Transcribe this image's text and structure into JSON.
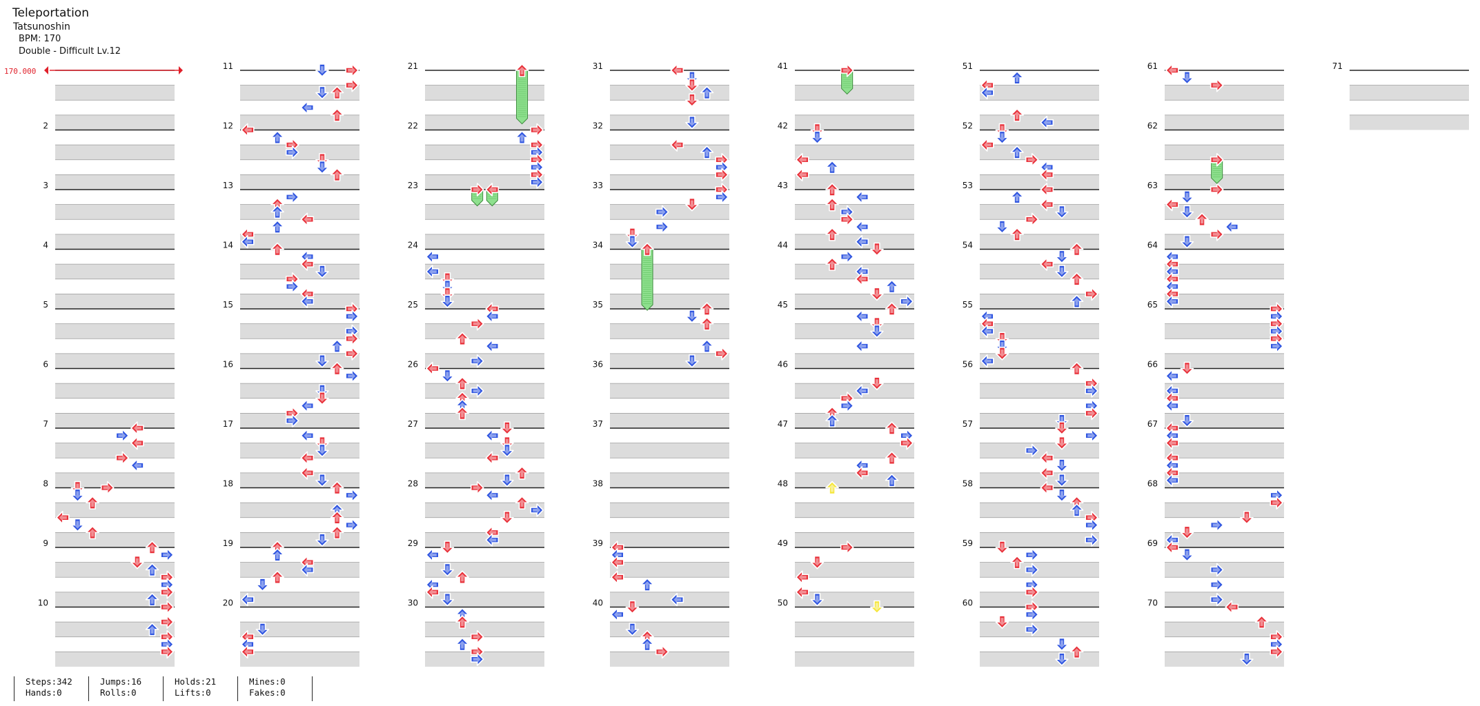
{
  "song": {
    "title": "Teleportation",
    "artist": "Tatsunoshin",
    "bpm_text": "BPM: 170",
    "difficulty": "Double - Difficult Lv.12"
  },
  "bpm_marker": "170.000",
  "measure_start": 1,
  "measure_count": 71,
  "measure_labels": [
    "2",
    "3",
    "4",
    "5",
    "6",
    "7",
    "8",
    "9",
    "10",
    "11",
    "12",
    "13",
    "14",
    "15",
    "16",
    "17",
    "18",
    "19",
    "20",
    "21",
    "22",
    "23",
    "24",
    "25",
    "26",
    "27",
    "28",
    "29",
    "30",
    "31",
    "32",
    "33",
    "34",
    "35",
    "36",
    "37",
    "38",
    "39",
    "40",
    "41",
    "42",
    "43",
    "44",
    "45",
    "46",
    "47",
    "48",
    "49",
    "50",
    "51",
    "52",
    "53",
    "54",
    "55",
    "56",
    "57",
    "58",
    "59",
    "60",
    "61",
    "62",
    "63",
    "64",
    "65",
    "66",
    "67",
    "68",
    "69",
    "70",
    "71"
  ],
  "colors": {
    "quarter_arrow": "#e8313a",
    "eighth_arrow": "#2f55e0",
    "sixteenth_arrow": "#f5e63a",
    "hold_body": "#8ee08e",
    "band": "#dcdcdc",
    "bpm_line": "#e0202a"
  },
  "notes_sample": [
    {
      "measure": 7,
      "lane": 5,
      "beat": 0,
      "color": "red",
      "dir": "left"
    },
    {
      "measure": 7,
      "lane": 4,
      "beat": 0.5,
      "color": "blue",
      "dir": "right"
    },
    {
      "measure": 7,
      "lane": 5,
      "beat": 1,
      "color": "red",
      "dir": "left"
    },
    {
      "measure": 7,
      "lane": 4,
      "beat": 2,
      "color": "red",
      "dir": "right"
    },
    {
      "measure": 7,
      "lane": 5,
      "beat": 2.5,
      "color": "blue",
      "dir": "left"
    },
    {
      "measure": 8,
      "lane": 1,
      "beat": 0,
      "color": "red",
      "dir": "down"
    },
    {
      "measure": 8,
      "lane": 3,
      "beat": 0,
      "color": "red",
      "dir": "right"
    },
    {
      "measure": 8,
      "lane": 1,
      "beat": 0.5,
      "color": "blue",
      "dir": "down"
    },
    {
      "measure": 8,
      "lane": 2,
      "beat": 1,
      "color": "red",
      "dir": "up"
    },
    {
      "measure": 8,
      "lane": 0,
      "beat": 2,
      "color": "red",
      "dir": "left"
    },
    {
      "measure": 8,
      "lane": 1,
      "beat": 2.5,
      "color": "blue",
      "dir": "down"
    },
    {
      "measure": 8,
      "lane": 2,
      "beat": 3,
      "color": "red",
      "dir": "up"
    },
    {
      "measure": 11,
      "lane": 7,
      "beat": 0,
      "color": "red",
      "dir": "right"
    },
    {
      "measure": 11,
      "lane": 5,
      "beat": 0,
      "color": "blue",
      "dir": "down"
    },
    {
      "measure": 11,
      "lane": 7,
      "beat": 1,
      "color": "red",
      "dir": "right"
    },
    {
      "measure": 11,
      "lane": 5,
      "beat": 1.5,
      "color": "blue",
      "dir": "down"
    },
    {
      "measure": 11,
      "lane": 6,
      "beat": 1.5,
      "color": "red",
      "dir": "up"
    },
    {
      "measure": 11,
      "lane": 4,
      "beat": 2.5,
      "color": "blue",
      "dir": "left"
    },
    {
      "measure": 11,
      "lane": 6,
      "beat": 3,
      "color": "red",
      "dir": "up"
    },
    {
      "measure": 21,
      "lane": 6,
      "beat": 0,
      "color": "green",
      "dir": "hold",
      "len": 3.5
    },
    {
      "measure": 23,
      "lane": 3,
      "beat": 0,
      "color": "green",
      "dir": "hold",
      "len": 1
    },
    {
      "measure": 23,
      "lane": 4,
      "beat": 0,
      "color": "green",
      "dir": "hold",
      "len": 1
    },
    {
      "measure": 34,
      "lane": 2,
      "beat": 0,
      "color": "green",
      "dir": "hold",
      "len": 4
    },
    {
      "measure": 41,
      "lane": 3,
      "beat": 0,
      "color": "green",
      "dir": "hold",
      "len": 1.5
    },
    {
      "measure": 48,
      "lane": 2,
      "beat": 0,
      "color": "yellow",
      "dir": "up"
    },
    {
      "measure": 50,
      "lane": 5,
      "beat": 0,
      "color": "yellow",
      "dir": "down"
    },
    {
      "measure": 61,
      "lane": 0,
      "beat": 0,
      "color": "red",
      "dir": "left"
    },
    {
      "measure": 61,
      "lane": 1,
      "beat": 0.5,
      "color": "blue",
      "dir": "down"
    },
    {
      "measure": 61,
      "lane": 3,
      "beat": 1,
      "color": "red",
      "dir": "right"
    },
    {
      "measure": 62,
      "lane": 3,
      "beat": 2,
      "color": "green",
      "dir": "hold",
      "len": 1.5
    }
  ],
  "stats": [
    {
      "top": "Steps:342",
      "bottom": "Hands:0"
    },
    {
      "top": "Jumps:16",
      "bottom": "Rolls:0"
    },
    {
      "top": "Holds:21",
      "bottom": "Lifts:0"
    },
    {
      "top": "Mines:0",
      "bottom": "Fakes:0"
    }
  ]
}
